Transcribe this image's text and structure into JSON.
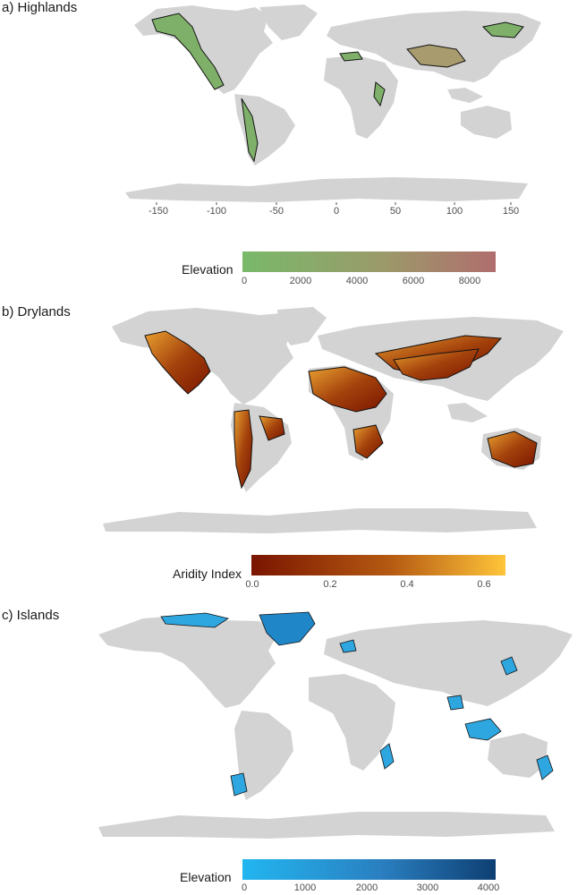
{
  "panels": [
    {
      "label": "a) Highlands",
      "colors": {
        "region": "#6fae5a",
        "outline": "#111111",
        "land": "#d3d3d3"
      },
      "x_axis_ticks": [
        "-150",
        "-100",
        "-50",
        "0",
        "50",
        "100",
        "150"
      ],
      "legend": {
        "title": "Elevation",
        "gradient": [
          "#79b96a",
          "#9a9a6a",
          "#b06e6e"
        ],
        "ticks": [
          "0",
          "2000",
          "4000",
          "6000",
          "8000"
        ],
        "range": [
          0,
          8800
        ]
      }
    },
    {
      "label": "b) Drylands",
      "colors": {
        "region": "#a35a10",
        "outline": "#111111",
        "land": "#d3d3d3"
      },
      "legend": {
        "title": "Aridity Index",
        "gradient": [
          "#7a1500",
          "#b55a12",
          "#ffc53a"
        ],
        "ticks": [
          "0.0",
          "0.2",
          "0.4",
          "0.6"
        ],
        "range": [
          0,
          0.65
        ]
      }
    },
    {
      "label": "c) Islands",
      "colors": {
        "region": "#2ea6e0",
        "outline": "#111111",
        "land": "#d3d3d3"
      },
      "legend": {
        "title": "Elevation",
        "gradient": [
          "#22b6f0",
          "#2a7fc0",
          "#0e3f73"
        ],
        "ticks": [
          "0",
          "1000",
          "2000",
          "3000",
          "4000"
        ],
        "range": [
          0,
          4100
        ]
      }
    }
  ]
}
